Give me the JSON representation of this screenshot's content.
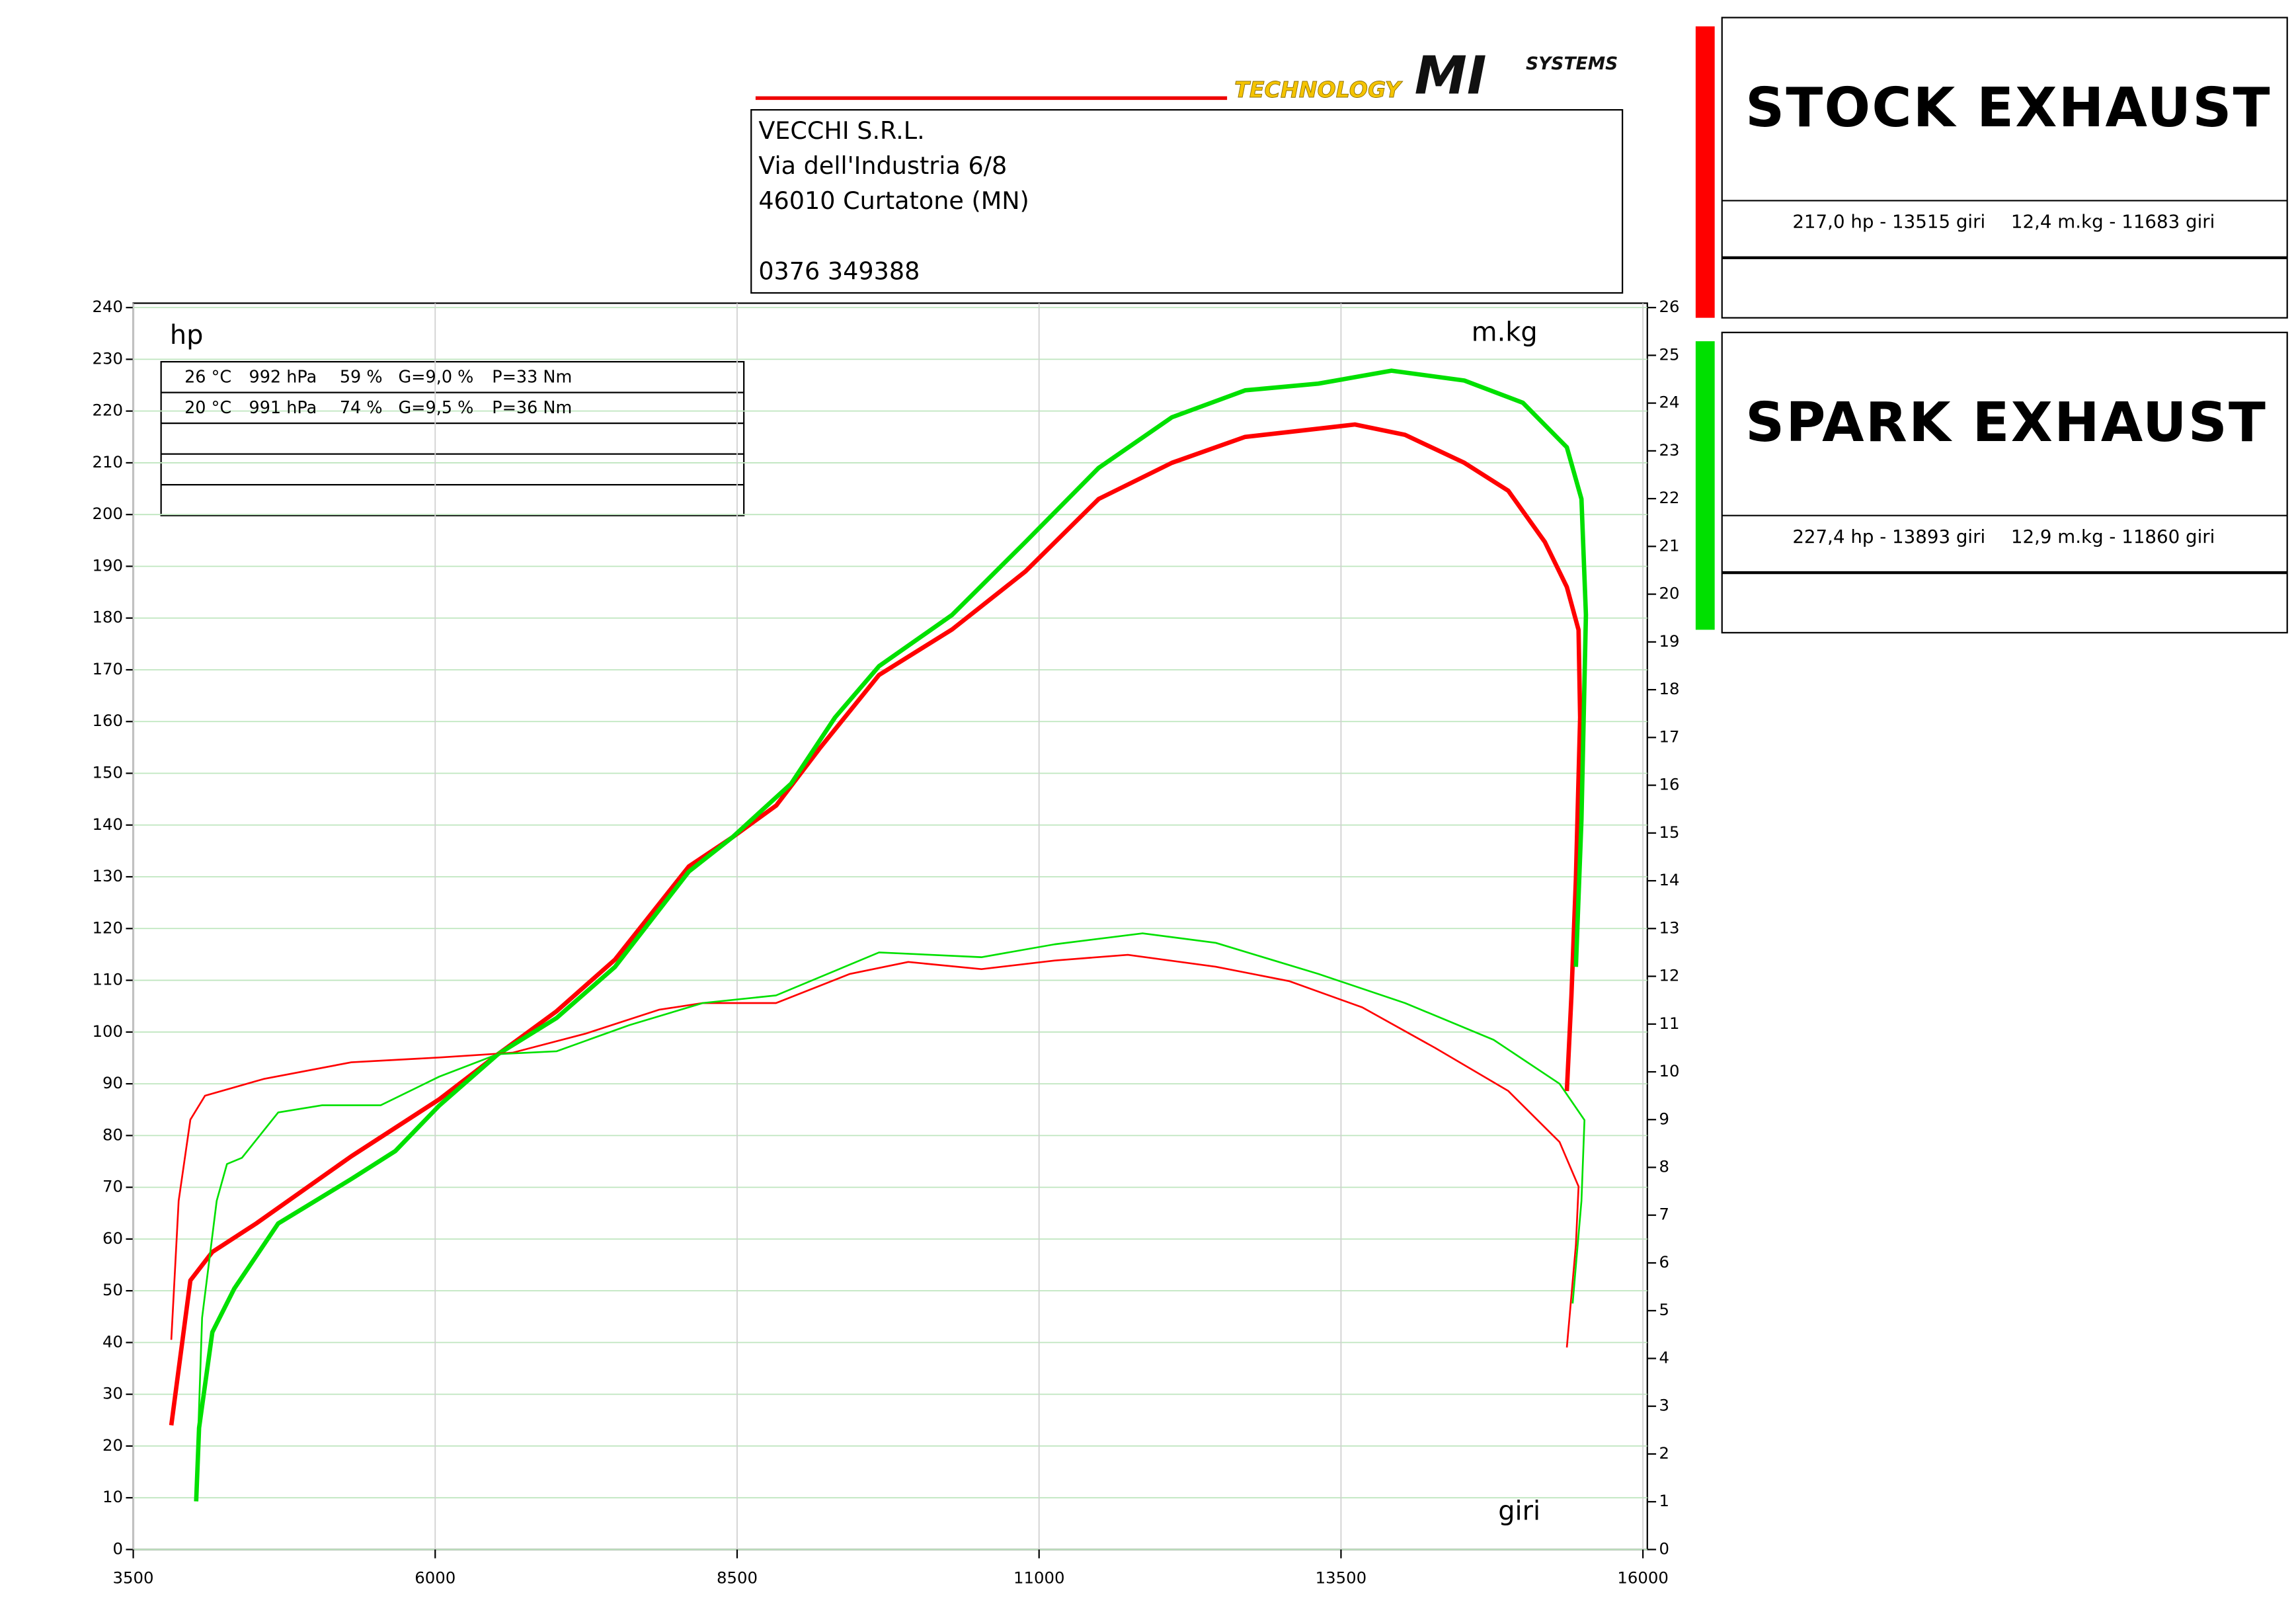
{
  "chart_data": {
    "type": "line",
    "company": [
      "VECCHI S.R.L.",
      "Via dell'Industria 6/8",
      "46010 Curtatone (MN)",
      "0376 349388"
    ],
    "logo": [
      "TECHNOLOGY",
      "MI",
      "SYSTEMS"
    ],
    "y_label": "hp",
    "y2_label": "m.kg",
    "x_label": "giri",
    "conditions": [
      [
        "26 °C",
        "992 hPa",
        "59 %",
        "G=9,0 %",
        "P=33 Nm"
      ],
      [
        "20 °C",
        "991 hPa",
        "74 %",
        "G=9,5 %",
        "P=36 Nm"
      ]
    ],
    "legend": [
      {
        "name": "STOCK EXHAUST",
        "color": "#ff0000",
        "stats": [
          "217,0 hp - 13515 giri",
          "12,4 m.kg - 11683 giri"
        ]
      },
      {
        "name": "SPARK EXHAUST",
        "color": "#00e000",
        "stats": [
          "227,4 hp - 13893 giri",
          "12,9 m.kg - 11860 giri"
        ]
      }
    ],
    "xlim": [
      3500,
      16000
    ],
    "xticks": [
      3500,
      6000,
      8500,
      11000,
      13500,
      16000
    ],
    "ylim": [
      0,
      240
    ],
    "yticks": [
      0,
      10,
      20,
      30,
      40,
      50,
      60,
      70,
      80,
      90,
      100,
      110,
      120,
      130,
      140,
      150,
      160,
      170,
      180,
      190,
      200,
      210,
      220,
      230,
      240
    ],
    "y2lim": [
      0,
      26
    ],
    "y2ticks": [
      0,
      1,
      2,
      3,
      4,
      5,
      6,
      7,
      8,
      9,
      10,
      11,
      12,
      13,
      14,
      15,
      16,
      17,
      18,
      19,
      20,
      21,
      22,
      23,
      24,
      25,
      26
    ],
    "grid": true,
    "series": [
      {
        "color": "#ff0000",
        "width": 3,
        "x": [
          3815,
          3973,
          4155,
          4518,
          5306,
          6034,
          6519,
          7004,
          7489,
          8100,
          8459,
          8825,
          9190,
          9675,
          10280,
          10887,
          11493,
          12100,
          12706,
          13312,
          13615,
          14030,
          14521,
          14885,
          15188,
          15370,
          15467,
          15480,
          15445,
          15408,
          15370
        ],
        "values": [
          24,
          52,
          57.5,
          63,
          76,
          87,
          95.7,
          104,
          114,
          132,
          137.6,
          143.8,
          155,
          169,
          177.8,
          189,
          203,
          210,
          215,
          216.6,
          217.4,
          215.4,
          210,
          204.6,
          194.7,
          186,
          177.7,
          160.8,
          129.6,
          107,
          88.6
        ]
      },
      {
        "color": "#00e000",
        "width": 3,
        "x": [
          4021,
          4045,
          4155,
          4336,
          4700,
          5306,
          5670,
          6034,
          6519,
          7004,
          7489,
          8100,
          8459,
          8947,
          9311,
          9675,
          10280,
          10887,
          11493,
          12100,
          12706,
          13312,
          13918,
          14521,
          15006,
          15370,
          15491,
          15528,
          15491,
          15445
        ],
        "values": [
          9.3,
          23.5,
          42,
          50.4,
          63,
          71.6,
          77,
          85.8,
          95.7,
          102.7,
          112.6,
          131,
          137.6,
          148,
          160.8,
          170.7,
          180.6,
          194.7,
          209,
          218.8,
          224,
          225.3,
          227.8,
          225.9,
          221.6,
          213,
          203,
          180.6,
          141,
          112.6
        ]
      },
      {
        "color": "#ff0000",
        "width": 1.2,
        "axis": "y2",
        "x": [
          3815,
          3876,
          3973,
          4094,
          4579,
          5306,
          6034,
          6640,
          7246,
          7853,
          8216,
          8822,
          9434,
          9917,
          10523,
          11130,
          11735,
          12463,
          13070,
          13676,
          14280,
          14885,
          15310,
          15467,
          15445,
          15370
        ],
        "values": [
          4.39,
          7.3,
          9.0,
          9.5,
          9.85,
          10.2,
          10.3,
          10.4,
          10.8,
          11.3,
          11.44,
          11.44,
          12.05,
          12.3,
          12.15,
          12.33,
          12.45,
          12.2,
          11.9,
          11.35,
          10.5,
          9.6,
          8.53,
          7.6,
          6.38,
          4.23
        ]
      },
      {
        "color": "#00e000",
        "width": 1.2,
        "axis": "y2",
        "x": [
          4021,
          4070,
          4191,
          4276,
          4400,
          4700,
          5064,
          5549,
          6034,
          6519,
          7004,
          7610,
          8216,
          8822,
          9675,
          10523,
          11130,
          11857,
          12463,
          13312,
          14030,
          14764,
          15310,
          15516,
          15491,
          15418
        ],
        "values": [
          1.17,
          4.85,
          7.3,
          8.07,
          8.2,
          9.15,
          9.3,
          9.3,
          9.9,
          10.37,
          10.43,
          10.98,
          11.44,
          11.6,
          12.5,
          12.4,
          12.67,
          12.9,
          12.7,
          12.05,
          11.44,
          10.67,
          9.75,
          8.99,
          7.3,
          5.15
        ]
      }
    ]
  }
}
